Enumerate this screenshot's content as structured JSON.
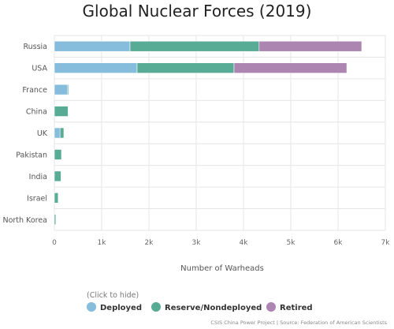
{
  "chart_data": {
    "type": "bar",
    "orientation": "horizontal",
    "stacked": true,
    "title": "Global Nuclear Forces (2019)",
    "xlabel": "Number of Warheads",
    "xlim": [
      0,
      7000
    ],
    "xticks": [
      0,
      1000,
      2000,
      3000,
      4000,
      5000,
      6000,
      7000
    ],
    "xtick_labels": [
      "0",
      "1k",
      "2k",
      "3k",
      "4k",
      "5k",
      "6k",
      "7k"
    ],
    "grid": true,
    "categories": [
      "Russia",
      "USA",
      "France",
      "China",
      "UK",
      "Pakistan",
      "India",
      "Israel",
      "North Korea"
    ],
    "series": [
      {
        "name": "Deployed",
        "color": "#86bcdc",
        "values": [
          1600,
          1750,
          280,
          0,
          120,
          0,
          0,
          0,
          0
        ]
      },
      {
        "name": "Reserve/Nondeployed",
        "color": "#58ab94",
        "values": [
          2730,
          2050,
          20,
          290,
          80,
          150,
          140,
          80,
          30
        ]
      },
      {
        "name": "Retired",
        "color": "#ac85b1",
        "values": [
          2170,
          2385,
          0,
          0,
          0,
          0,
          0,
          0,
          0
        ]
      }
    ],
    "legend": {
      "hint": "(Click to hide)",
      "position": "bottom"
    }
  },
  "credit": "CSIS China Power Project | Source: Federation of American Scientists"
}
